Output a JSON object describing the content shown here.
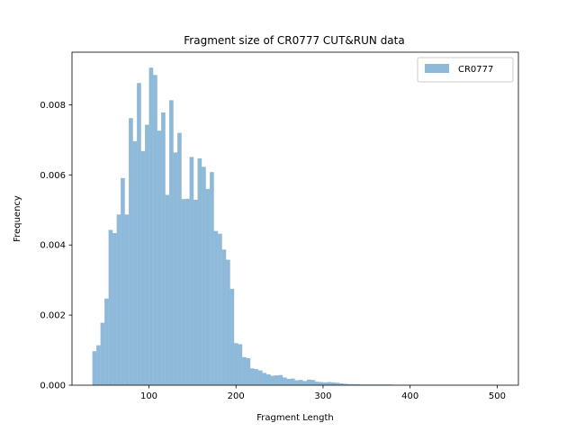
{
  "chart_data": {
    "type": "bar",
    "title": "Fragment size of CR0777 CUT&RUN data",
    "xlabel": "Fragment Length",
    "ylabel": "Frequency",
    "xlim": [
      11.6,
      524.4
    ],
    "ylim": [
      0,
      0.0095
    ],
    "xticks": [
      100,
      200,
      300,
      400,
      500
    ],
    "yticks": [
      0.0,
      0.002,
      0.004,
      0.006,
      0.008
    ],
    "ytick_labels": [
      "0.000",
      "0.002",
      "0.004",
      "0.006",
      "0.008"
    ],
    "grid": false,
    "legend_position": "top-right",
    "bin_start": 35,
    "bin_width": 4.65,
    "series": [
      {
        "name": "CR0777",
        "color": "#8fb9d9",
        "values": [
          0.00097,
          0.00114,
          0.00178,
          0.00247,
          0.00443,
          0.00434,
          0.00487,
          0.00591,
          0.00487,
          0.00762,
          0.00696,
          0.00862,
          0.00668,
          0.00743,
          0.00906,
          0.00885,
          0.00726,
          0.00778,
          0.00543,
          0.00813,
          0.00664,
          0.0072,
          0.00531,
          0.00532,
          0.00651,
          0.00529,
          0.00647,
          0.00623,
          0.0056,
          0.00608,
          0.0044,
          0.00432,
          0.00387,
          0.00358,
          0.00275,
          0.0012,
          0.00117,
          0.0008,
          0.00077,
          0.00048,
          0.00046,
          0.00042,
          0.00035,
          0.00031,
          0.00027,
          0.00028,
          0.00029,
          0.00022,
          0.00018,
          0.00019,
          0.00014,
          0.00015,
          0.00012,
          0.00016,
          0.00015,
          0.0001,
          9e-05,
          8e-05,
          9e-05,
          8e-05,
          7e-05,
          5e-05,
          4e-05,
          3e-05,
          3e-05,
          3e-05,
          2e-05,
          2e-05,
          2e-05,
          2e-05,
          2e-05,
          2e-05,
          2e-05,
          2e-05,
          1e-05,
          1e-05,
          1e-05,
          1e-05,
          1e-05,
          1e-05,
          1e-05,
          1e-05,
          1e-05,
          1e-05,
          1e-05,
          1e-05,
          1e-05,
          1e-05,
          1e-05,
          1e-05,
          1e-05,
          1e-05,
          1e-05,
          1e-05,
          1e-05,
          1e-05,
          1e-05,
          1e-05,
          1e-05,
          1e-05
        ]
      }
    ]
  }
}
